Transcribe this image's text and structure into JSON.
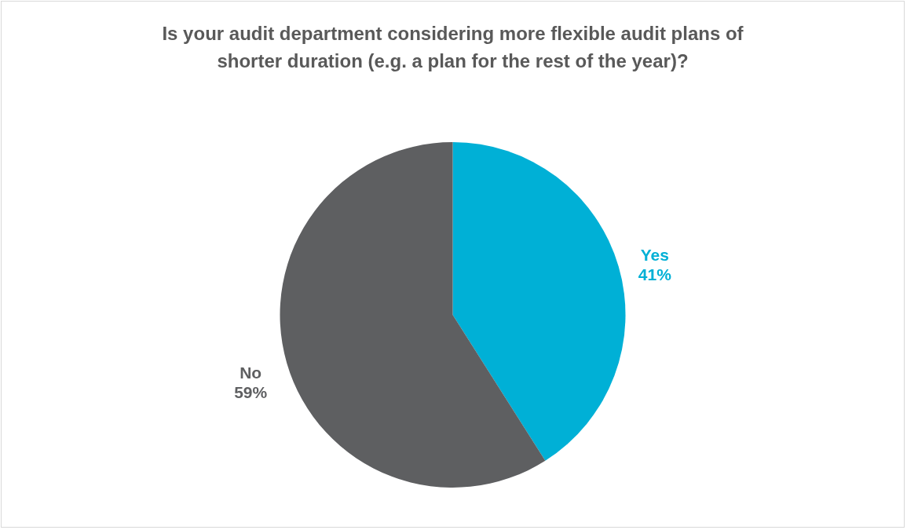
{
  "chart_data": {
    "type": "pie",
    "title": "Is your audit department considering more flexible audit plans of shorter duration (e.g. a plan for the rest of the year)?",
    "categories": [
      "Yes",
      "No"
    ],
    "values": [
      41,
      59
    ],
    "colors": [
      "#00b0d6",
      "#5e5f61"
    ],
    "value_labels": [
      "41%",
      "59%"
    ],
    "legend": false
  }
}
